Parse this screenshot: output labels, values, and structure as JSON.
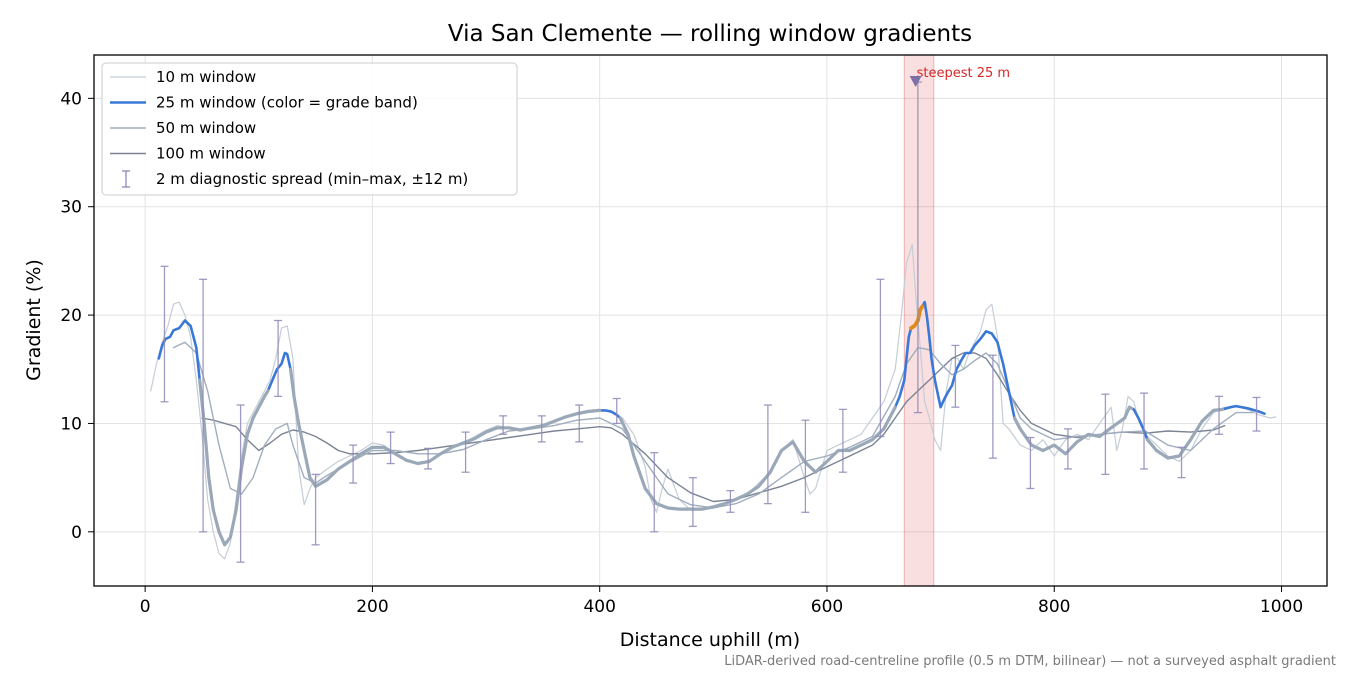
{
  "chart_data": {
    "type": "line",
    "title": "Via San Clemente — rolling window gradients",
    "xlabel": "Distance uphill (m)",
    "ylabel": "Gradient (%)",
    "xlim": [
      -45,
      1040
    ],
    "ylim": [
      -5,
      44
    ],
    "xticks": [
      0,
      200,
      400,
      600,
      800,
      1000
    ],
    "yticks": [
      0,
      10,
      20,
      30,
      40
    ],
    "grid": true,
    "legend_position": "top-left",
    "footnote": "LiDAR-derived road-centreline profile (0.5 m DTM, bilinear) — not a surveyed asphalt gradient",
    "annotation": {
      "text": "steepest 25 m",
      "x": 678,
      "y": 41.6,
      "color": "#d62728"
    },
    "highlight_span": {
      "x0": 668,
      "x1": 694,
      "color": "#d62728"
    },
    "series": [
      {
        "name": "10 m window",
        "color": "#c5cdd6",
        "width": 1.2,
        "x": [
          5,
          10,
          15,
          20,
          25,
          30,
          35,
          40,
          45,
          50,
          55,
          60,
          65,
          70,
          75,
          80,
          85,
          90,
          95,
          100,
          105,
          110,
          115,
          120,
          125,
          130,
          135,
          140,
          145,
          150,
          160,
          170,
          180,
          190,
          200,
          210,
          220,
          230,
          240,
          250,
          260,
          270,
          280,
          290,
          300,
          310,
          320,
          330,
          340,
          350,
          360,
          370,
          380,
          390,
          400,
          410,
          420,
          430,
          440,
          445,
          450,
          455,
          460,
          470,
          480,
          490,
          500,
          510,
          520,
          530,
          540,
          550,
          560,
          570,
          580,
          585,
          590,
          600,
          610,
          620,
          630,
          640,
          650,
          660,
          665,
          670,
          675,
          678,
          682,
          686,
          690,
          695,
          700,
          705,
          710,
          715,
          720,
          725,
          730,
          735,
          740,
          745,
          750,
          755,
          760,
          770,
          780,
          790,
          800,
          810,
          820,
          830,
          840,
          850,
          855,
          860,
          865,
          870,
          875,
          880,
          890,
          900,
          910,
          920,
          930,
          940,
          950,
          960,
          970,
          980,
          990,
          995
        ],
        "values": [
          13,
          15.5,
          17.5,
          19,
          21,
          21.2,
          20,
          18,
          14,
          9,
          3,
          0,
          -2,
          -2.5,
          -1,
          3,
          7,
          10,
          11,
          12,
          13,
          14,
          16,
          18.8,
          19,
          16,
          6,
          2.5,
          4,
          5,
          5.8,
          6.5,
          7,
          7.5,
          8.2,
          8,
          7.2,
          6.5,
          6.3,
          6.5,
          7.2,
          7.8,
          8.2,
          8.8,
          9.4,
          9.8,
          9.6,
          9.4,
          9.6,
          9.8,
          10.2,
          10.6,
          11,
          11.2,
          11.3,
          11,
          10.5,
          9,
          6,
          3,
          1.8,
          4,
          5.8,
          3,
          2,
          2,
          2.2,
          2.5,
          3,
          3.5,
          4.5,
          5.5,
          7.5,
          8.5,
          5,
          3.5,
          4,
          7.5,
          8,
          8.5,
          9,
          10.5,
          12,
          15,
          19.5,
          24.8,
          26.5,
          22,
          17,
          12,
          10.5,
          8.5,
          7.5,
          13,
          16,
          16,
          15,
          16.5,
          17.5,
          18.5,
          20.5,
          21,
          18,
          10,
          9.5,
          8,
          7.5,
          8.5,
          7,
          8.5,
          9,
          8.5,
          10,
          11.5,
          7.5,
          9.5,
          12.5,
          12,
          10,
          9,
          8,
          7,
          6.5,
          7.5,
          9.5,
          11,
          11.5,
          11.6,
          11.3,
          10.8,
          10.5,
          10.6
        ]
      },
      {
        "name": "25 m window (color = grade band)",
        "color": "#3a78d8",
        "width": 2.6,
        "band_color": "#9aa8b8",
        "band_segments": [
          [
            48,
            108
          ],
          [
            128,
            400
          ],
          [
            418,
            660
          ],
          [
            765,
            868
          ],
          [
            882,
            948
          ]
        ],
        "steepest_color": "#e08a1a",
        "steepest_segment": [
          674,
          684
        ],
        "x": [
          12,
          15,
          18,
          22,
          25,
          30,
          35,
          40,
          45,
          48,
          52,
          56,
          60,
          65,
          70,
          75,
          80,
          85,
          90,
          95,
          100,
          105,
          108,
          112,
          116,
          120,
          123,
          125,
          128,
          131,
          135,
          140,
          145,
          150,
          160,
          170,
          180,
          190,
          200,
          210,
          220,
          230,
          240,
          250,
          260,
          270,
          280,
          290,
          300,
          310,
          320,
          330,
          340,
          350,
          360,
          370,
          380,
          390,
          400,
          405,
          410,
          415,
          418,
          425,
          430,
          440,
          450,
          460,
          470,
          480,
          490,
          500,
          510,
          520,
          530,
          540,
          550,
          560,
          570,
          580,
          590,
          600,
          610,
          620,
          630,
          640,
          650,
          655,
          660,
          664,
          668,
          670,
          672,
          674,
          677,
          680,
          682,
          684,
          686,
          688,
          690,
          692,
          695,
          698,
          700,
          703,
          706,
          710,
          714,
          718,
          722,
          726,
          730,
          735,
          740,
          745,
          750,
          755,
          760,
          765,
          770,
          780,
          790,
          800,
          810,
          820,
          830,
          840,
          850,
          858,
          862,
          866,
          870,
          874,
          878,
          882,
          890,
          900,
          910,
          920,
          930,
          940,
          948,
          955,
          960,
          970,
          980,
          985
        ],
        "values": [
          16,
          17.2,
          17.8,
          18,
          18.6,
          18.8,
          19.5,
          19,
          17,
          14,
          10,
          5,
          2,
          0,
          -1.2,
          -0.5,
          2,
          6,
          9,
          10.5,
          11.5,
          12.5,
          13,
          14,
          15,
          15.5,
          16.5,
          16.4,
          15,
          12.5,
          10,
          7.5,
          5,
          4.2,
          4.8,
          5.8,
          6.5,
          7.2,
          7.8,
          7.8,
          7.2,
          6.6,
          6.3,
          6.5,
          7.2,
          7.8,
          8.2,
          8.6,
          9.2,
          9.6,
          9.6,
          9.4,
          9.6,
          9.8,
          10.2,
          10.6,
          10.9,
          11.1,
          11.2,
          11.2,
          11.1,
          10.8,
          10.5,
          9,
          7,
          4,
          2.6,
          2.2,
          2.1,
          2.1,
          2.1,
          2.3,
          2.6,
          3,
          3.5,
          4.2,
          5.5,
          7.5,
          8.3,
          6.5,
          5.5,
          6.5,
          7.5,
          7.5,
          8,
          8.5,
          9.5,
          10.5,
          11.5,
          12.5,
          14,
          16,
          18,
          18.8,
          19,
          19.5,
          20.5,
          20.8,
          21.2,
          19.8,
          18,
          16,
          14,
          12.5,
          11.5,
          12.2,
          12.8,
          13.5,
          15,
          15.8,
          16.5,
          16.5,
          17.2,
          17.8,
          18.5,
          18.3,
          17.5,
          15.5,
          13,
          10.5,
          9.5,
          8,
          7.5,
          8,
          7.2,
          8.3,
          9,
          8.8,
          9.6,
          10.2,
          10.5,
          11.5,
          11.3,
          10.5,
          9.6,
          8.5,
          7.5,
          6.8,
          7,
          8.5,
          10.2,
          11.2,
          11.3,
          11.5,
          11.6,
          11.4,
          11.1,
          10.9
        ]
      },
      {
        "name": "50 m window",
        "color": "#a0aebe",
        "width": 1.4,
        "x": [
          25,
          35,
          45,
          55,
          65,
          75,
          85,
          95,
          105,
          115,
          125,
          130,
          140,
          150,
          160,
          180,
          200,
          220,
          240,
          260,
          280,
          300,
          320,
          340,
          360,
          380,
          400,
          420,
          440,
          460,
          480,
          500,
          520,
          540,
          560,
          580,
          600,
          620,
          640,
          660,
          670,
          680,
          690,
          700,
          710,
          720,
          730,
          740,
          750,
          760,
          770,
          780,
          800,
          820,
          840,
          860,
          880,
          900,
          920,
          940,
          960,
          975
        ],
        "values": [
          17,
          17.5,
          16.5,
          13,
          8,
          4,
          3.5,
          5,
          8,
          9.5,
          10,
          8,
          5,
          4.5,
          5.2,
          6.4,
          7.5,
          7.5,
          7.2,
          7.2,
          7.6,
          8.5,
          9.3,
          9.5,
          9.8,
          10.3,
          10.5,
          9.5,
          6.5,
          3.5,
          2.5,
          2.2,
          2.6,
          3.5,
          5,
          6.5,
          7,
          7.8,
          8.8,
          12.5,
          15.5,
          17,
          16.8,
          15.5,
          14.5,
          15,
          15.8,
          16.5,
          15.5,
          13,
          10.5,
          9.5,
          8.5,
          8.8,
          9,
          9.2,
          9.3,
          8,
          7.5,
          9.5,
          11,
          11
        ]
      },
      {
        "name": "100 m window",
        "color": "#7b8494",
        "width": 1.4,
        "x": [
          50,
          60,
          70,
          80,
          90,
          100,
          110,
          120,
          130,
          140,
          150,
          160,
          170,
          180,
          200,
          220,
          240,
          260,
          280,
          300,
          320,
          340,
          360,
          380,
          400,
          410,
          420,
          440,
          460,
          480,
          500,
          520,
          540,
          560,
          580,
          600,
          620,
          640,
          650,
          660,
          670,
          680,
          690,
          700,
          710,
          720,
          730,
          740,
          750,
          760,
          770,
          780,
          800,
          820,
          840,
          860,
          880,
          900,
          920,
          940,
          950
        ],
        "values": [
          10.5,
          10.3,
          10,
          9.7,
          8.5,
          7.5,
          8.2,
          9,
          9.4,
          9.2,
          8.8,
          8.2,
          7.5,
          7.2,
          7.2,
          7.3,
          7.5,
          7.8,
          8.1,
          8.4,
          8.7,
          9,
          9.3,
          9.5,
          9.7,
          9.6,
          9,
          7.2,
          5,
          3.6,
          2.8,
          3,
          3.6,
          4.2,
          5,
          6,
          7,
          8,
          9,
          10.5,
          12,
          13,
          14,
          15,
          16,
          16.5,
          16.5,
          16,
          14.5,
          12.8,
          11.2,
          10,
          9,
          8.7,
          9,
          9.2,
          9.1,
          9.3,
          9.2,
          9.4,
          9.8
        ]
      }
    ],
    "error_bars": {
      "name": "2 m diagnostic spread (min–max, ±12 m)",
      "color": "#8f88b8",
      "x": [
        17,
        51,
        84,
        117,
        150,
        183,
        216,
        249,
        282,
        315,
        349,
        382,
        415,
        448,
        482,
        515,
        548,
        581,
        614,
        647,
        680,
        713,
        746,
        779,
        812,
        845,
        879,
        912,
        945,
        978
      ],
      "low": [
        12,
        0,
        -2.8,
        12.5,
        -1.2,
        4.5,
        6.3,
        5.8,
        5.5,
        9,
        8.3,
        8.3,
        10,
        0,
        0.5,
        1.8,
        2.6,
        1.8,
        5.5,
        8.8,
        11,
        11.5,
        6.8,
        4,
        5.8,
        5.3,
        5.8,
        5,
        9,
        9.3
      ],
      "high": [
        24.5,
        23.3,
        11.7,
        19.5,
        5.3,
        8,
        9.2,
        7.7,
        9.2,
        10.7,
        10.7,
        11.7,
        12.3,
        7.3,
        5,
        3.8,
        11.7,
        10.3,
        11.3,
        23.3,
        41.5,
        17.2,
        16.3,
        8.7,
        9.5,
        12.7,
        12.8,
        7.8,
        12.5,
        12.4
      ]
    }
  }
}
